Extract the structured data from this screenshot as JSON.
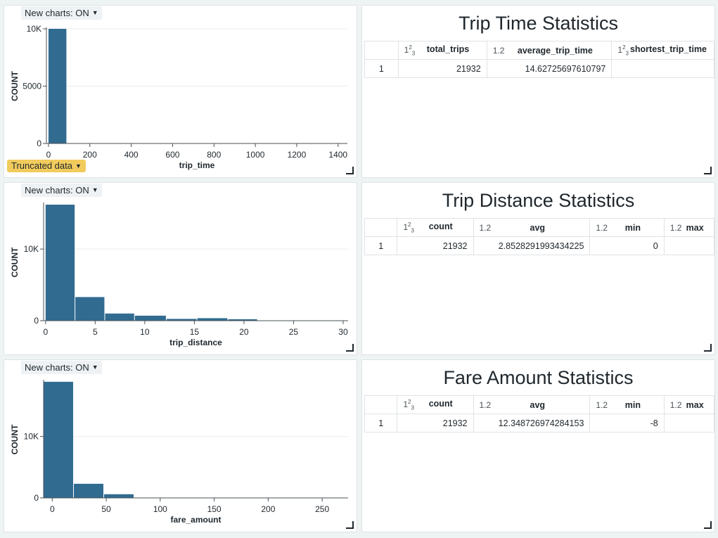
{
  "toggle_label": "New charts: ON",
  "truncated_label": "Truncated data",
  "histograms": [
    {
      "xlabel": "trip_time",
      "ylabel": "COUNT",
      "xticks": [
        0,
        200,
        400,
        600,
        800,
        1000,
        1200,
        1400
      ],
      "yticks": [
        {
          "v": 0,
          "label": "0"
        },
        {
          "v": 5000,
          "label": "5000"
        },
        {
          "v": 10000,
          "label": "10K"
        }
      ],
      "xlim": [
        -10,
        1445
      ],
      "ylim": [
        0,
        10000
      ],
      "bins": [
        {
          "x0": 0,
          "x1": 90,
          "count": 10000
        },
        {
          "x0": 1350,
          "x1": 1440,
          "count": 0
        }
      ],
      "truncated": true
    },
    {
      "xlabel": "trip_distance",
      "ylabel": "COUNT",
      "xticks": [
        0,
        5,
        10,
        15,
        20,
        25,
        30
      ],
      "yticks": [
        {
          "v": 0,
          "label": "0"
        },
        {
          "v": 10000,
          "label": "10K"
        }
      ],
      "xlim": [
        -0.2,
        30.5
      ],
      "ylim": [
        0,
        16300
      ],
      "bins": [
        {
          "x0": 0,
          "x1": 3,
          "count": 16200
        },
        {
          "x0": 3,
          "x1": 6,
          "count": 3300
        },
        {
          "x0": 6,
          "x1": 9,
          "count": 1000
        },
        {
          "x0": 9,
          "x1": 12.2,
          "count": 700
        },
        {
          "x0": 12.2,
          "x1": 15.3,
          "count": 250
        },
        {
          "x0": 15.3,
          "x1": 18.4,
          "count": 350
        },
        {
          "x0": 18.4,
          "x1": 21.4,
          "count": 200
        },
        {
          "x0": 21.4,
          "x1": 24.5,
          "count": 40
        },
        {
          "x0": 24.5,
          "x1": 27.5,
          "count": 20
        },
        {
          "x0": 27.5,
          "x1": 30.5,
          "count": 10
        }
      ],
      "truncated": false
    },
    {
      "xlabel": "fare_amount",
      "ylabel": "COUNT",
      "xticks": [
        0,
        50,
        100,
        150,
        200,
        250
      ],
      "yticks": [
        {
          "v": 0,
          "label": "0"
        },
        {
          "v": 10000,
          "label": "10K"
        }
      ],
      "xlim": [
        -8,
        274
      ],
      "ylim": [
        0,
        19000
      ],
      "bins": [
        {
          "x0": -8,
          "x1": 20,
          "count": 18900
        },
        {
          "x0": 20,
          "x1": 48,
          "count": 2300
        },
        {
          "x0": 48,
          "x1": 76,
          "count": 600
        },
        {
          "x0": 76,
          "x1": 104,
          "count": 40
        },
        {
          "x0": 104,
          "x1": 132,
          "count": 20
        },
        {
          "x0": 132,
          "x1": 160,
          "count": 10
        }
      ],
      "truncated": false
    }
  ],
  "tables": [
    {
      "title": "Trip Time Statistics",
      "columns": [
        {
          "type": "int",
          "name": "total_trips"
        },
        {
          "type": "1.2",
          "name": "average_trip_time"
        },
        {
          "type": "int",
          "name": "shortest_trip_time"
        }
      ],
      "rows": [
        {
          "index": "1",
          "values": [
            "21932",
            "14.62725697610797",
            ""
          ]
        }
      ]
    },
    {
      "title": "Trip Distance Statistics",
      "columns": [
        {
          "type": "int",
          "name": "count"
        },
        {
          "type": "1.2",
          "name": "avg"
        },
        {
          "type": "1.2",
          "name": "min"
        },
        {
          "type": "1.2",
          "name": "max"
        }
      ],
      "rows": [
        {
          "index": "1",
          "values": [
            "21932",
            "2.8528291993434225",
            "0",
            ""
          ]
        }
      ]
    },
    {
      "title": "Fare Amount Statistics",
      "columns": [
        {
          "type": "int",
          "name": "count"
        },
        {
          "type": "1.2",
          "name": "avg"
        },
        {
          "type": "1.2",
          "name": "min"
        },
        {
          "type": "1.2",
          "name": "max"
        }
      ],
      "rows": [
        {
          "index": "1",
          "values": [
            "21932",
            "12.348726974284153",
            "-8",
            ""
          ]
        }
      ]
    }
  ],
  "colors": {
    "bar": "#316b90",
    "grid": "#e8ecee",
    "axis": "#4a5256"
  }
}
